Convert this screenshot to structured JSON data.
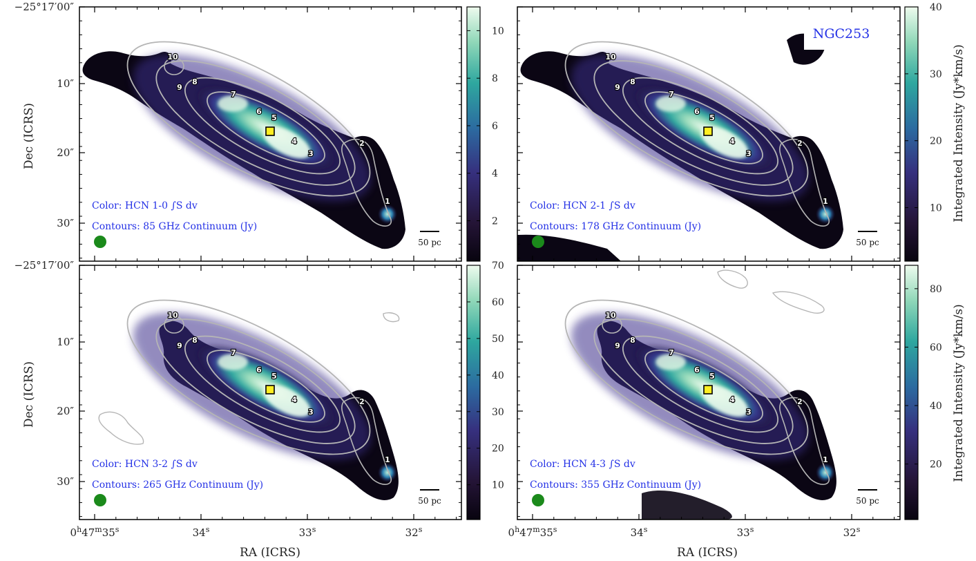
{
  "figure": {
    "galaxy_label": "NGC253",
    "colorbar_title": "Integrated Intensity (Jy*km/s)",
    "x_axis_title": "RA (ICRS)",
    "y_axis_title": "Dec (ICRS)",
    "x_ticks": [
      "0h47m35s",
      "34s",
      "33s",
      "32s"
    ],
    "y_ticks": [
      "−25°17′00″",
      "10″",
      "20″",
      "30″"
    ],
    "scalebar_label": "50 pc",
    "colors": {
      "emission_low": "#0b0614",
      "emission_mid": "#3a2f8a",
      "emission_high": "#27a3a0",
      "emission_peak": "#eefbee",
      "contours": "#b5b5b5",
      "annotation_text": "#2431e6",
      "marker": "#ffee22",
      "beam": "#1b8a1b"
    },
    "icons": {
      "marker": "yellow-square-marker",
      "beam": "green-circle-beam"
    }
  },
  "panels": [
    {
      "id": "hcn10",
      "color_label": "Color: HCN 1-0 ∫S dv",
      "contour_label": "Contours: 85 GHz Continuum (Jy)",
      "colorbar_ticks": [
        "2",
        "4",
        "6",
        "8",
        "10"
      ],
      "colorbar_values": [
        2,
        4,
        6,
        8,
        10
      ],
      "colorbar_range": [
        0.3,
        11.0
      ]
    },
    {
      "id": "hcn21",
      "color_label": "Color: HCN 2-1 ∫S dv",
      "contour_label": "Contours: 178 GHz Continuum (Jy)",
      "colorbar_ticks": [
        "10",
        "20",
        "30",
        "40"
      ],
      "colorbar_values": [
        10,
        20,
        30,
        40
      ],
      "colorbar_range": [
        2,
        40
      ]
    },
    {
      "id": "hcn32",
      "color_label": "Color: HCN 3-2 ∫S dv",
      "contour_label": "Contours: 265 GHz Continuum (Jy)",
      "colorbar_ticks": [
        "10",
        "20",
        "30",
        "40",
        "50",
        "60",
        "70"
      ],
      "colorbar_values": [
        10,
        20,
        30,
        40,
        50,
        60,
        70
      ],
      "colorbar_range": [
        0.5,
        70
      ]
    },
    {
      "id": "hcn43",
      "color_label": "Color: HCN 4-3 ∫S dv",
      "contour_label": "Contours: 355 GHz Continuum (Jy)",
      "colorbar_ticks": [
        "20",
        "40",
        "60",
        "80"
      ],
      "colorbar_values": [
        20,
        40,
        60,
        80
      ],
      "colorbar_range": [
        1,
        88
      ]
    }
  ],
  "region_labels": [
    "1",
    "2",
    "3",
    "4",
    "5",
    "6",
    "7",
    "8",
    "9",
    "10"
  ]
}
